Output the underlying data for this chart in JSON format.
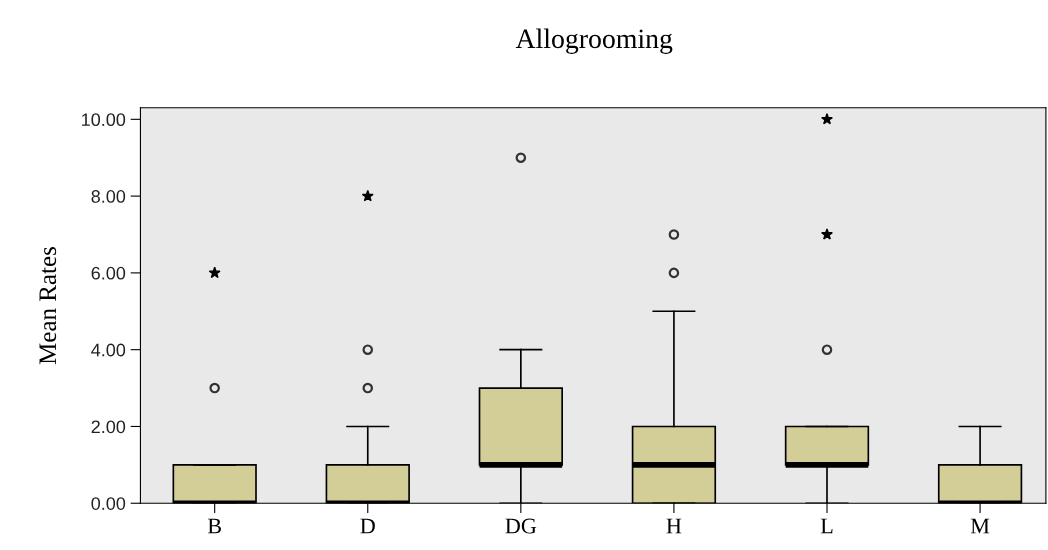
{
  "chart_data": {
    "type": "box",
    "title": "Allogrooming",
    "ylabel": "Mean Rates",
    "categories": [
      "B",
      "D",
      "DG",
      "H",
      "L",
      "M"
    ],
    "color": "#d3ce97",
    "boxes": [
      {
        "low": 0,
        "q1": 0,
        "median": 0,
        "q3": 1,
        "high": 1,
        "outliers": [
          3,
          6
        ]
      },
      {
        "low": 0,
        "q1": 0,
        "median": 0,
        "q3": 1,
        "high": 2,
        "outliers": [
          3,
          4,
          8
        ]
      },
      {
        "low": 0,
        "q1": 1,
        "median": 1,
        "q3": 3,
        "high": 4,
        "outliers": [
          9
        ]
      },
      {
        "low": 0,
        "q1": 0,
        "median": 1,
        "q3": 2,
        "high": 5,
        "outliers": [
          6,
          7
        ]
      },
      {
        "low": 0,
        "q1": 1,
        "median": 1,
        "q3": 2,
        "high": 2,
        "outliers": [
          4,
          7,
          10
        ]
      },
      {
        "low": 0,
        "q1": 0,
        "median": 0,
        "q3": 1,
        "high": 2
      }
    ],
    "ylim": [
      0,
      10.3
    ],
    "yticks": [
      {
        "value": 0,
        "label": "0.00"
      },
      {
        "value": 2,
        "label": "2.00"
      },
      {
        "value": 4,
        "label": "4.00"
      },
      {
        "value": 6,
        "label": "6.00"
      },
      {
        "value": 8,
        "label": "8.00"
      },
      {
        "value": 10,
        "label": "10.00"
      }
    ],
    "grid": false
  }
}
